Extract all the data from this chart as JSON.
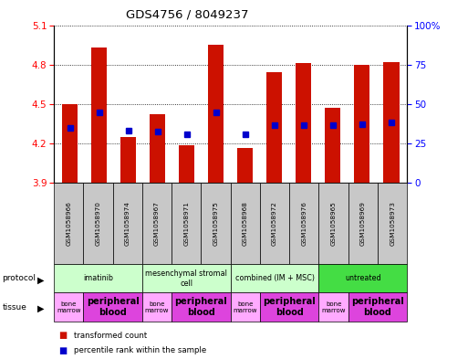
{
  "title": "GDS4756 / 8049237",
  "samples": [
    "GSM1058966",
    "GSM1058970",
    "GSM1058974",
    "GSM1058967",
    "GSM1058971",
    "GSM1058975",
    "GSM1058968",
    "GSM1058972",
    "GSM1058976",
    "GSM1058965",
    "GSM1058969",
    "GSM1058973"
  ],
  "red_values": [
    4.5,
    4.93,
    4.25,
    4.42,
    4.19,
    4.95,
    4.17,
    4.74,
    4.81,
    4.47,
    4.8,
    4.82
  ],
  "blue_values": [
    4.32,
    4.44,
    4.3,
    4.29,
    4.27,
    4.44,
    4.27,
    4.34,
    4.34,
    4.34,
    4.35,
    4.36
  ],
  "y_min": 3.9,
  "y_max": 5.1,
  "y_ticks_left": [
    3.9,
    4.2,
    4.5,
    4.8,
    5.1
  ],
  "y_ticks_right": [
    0,
    25,
    50,
    75,
    100
  ],
  "protocols": [
    {
      "label": "imatinib",
      "start": 0,
      "end": 3,
      "color": "#ccffcc"
    },
    {
      "label": "mesenchymal stromal\ncell",
      "start": 3,
      "end": 6,
      "color": "#ccffcc"
    },
    {
      "label": "combined (IM + MSC)",
      "start": 6,
      "end": 9,
      "color": "#ccffcc"
    },
    {
      "label": "untreated",
      "start": 9,
      "end": 12,
      "color": "#44dd44"
    }
  ],
  "tissues": [
    {
      "label": "bone\nmarrow",
      "start": 0,
      "end": 1,
      "color": "#ffaaff"
    },
    {
      "label": "peripheral\nblood",
      "start": 1,
      "end": 3,
      "color": "#dd44dd"
    },
    {
      "label": "bone\nmarrow",
      "start": 3,
      "end": 4,
      "color": "#ffaaff"
    },
    {
      "label": "peripheral\nblood",
      "start": 4,
      "end": 6,
      "color": "#dd44dd"
    },
    {
      "label": "bone\nmarrow",
      "start": 6,
      "end": 7,
      "color": "#ffaaff"
    },
    {
      "label": "peripheral\nblood",
      "start": 7,
      "end": 9,
      "color": "#dd44dd"
    },
    {
      "label": "bone\nmarrow",
      "start": 9,
      "end": 10,
      "color": "#ffaaff"
    },
    {
      "label": "peripheral\nblood",
      "start": 10,
      "end": 12,
      "color": "#dd44dd"
    }
  ],
  "bar_color": "#cc1100",
  "dot_color": "#0000cc",
  "bg_color": "#ffffff",
  "gray_color": "#c8c8c8"
}
